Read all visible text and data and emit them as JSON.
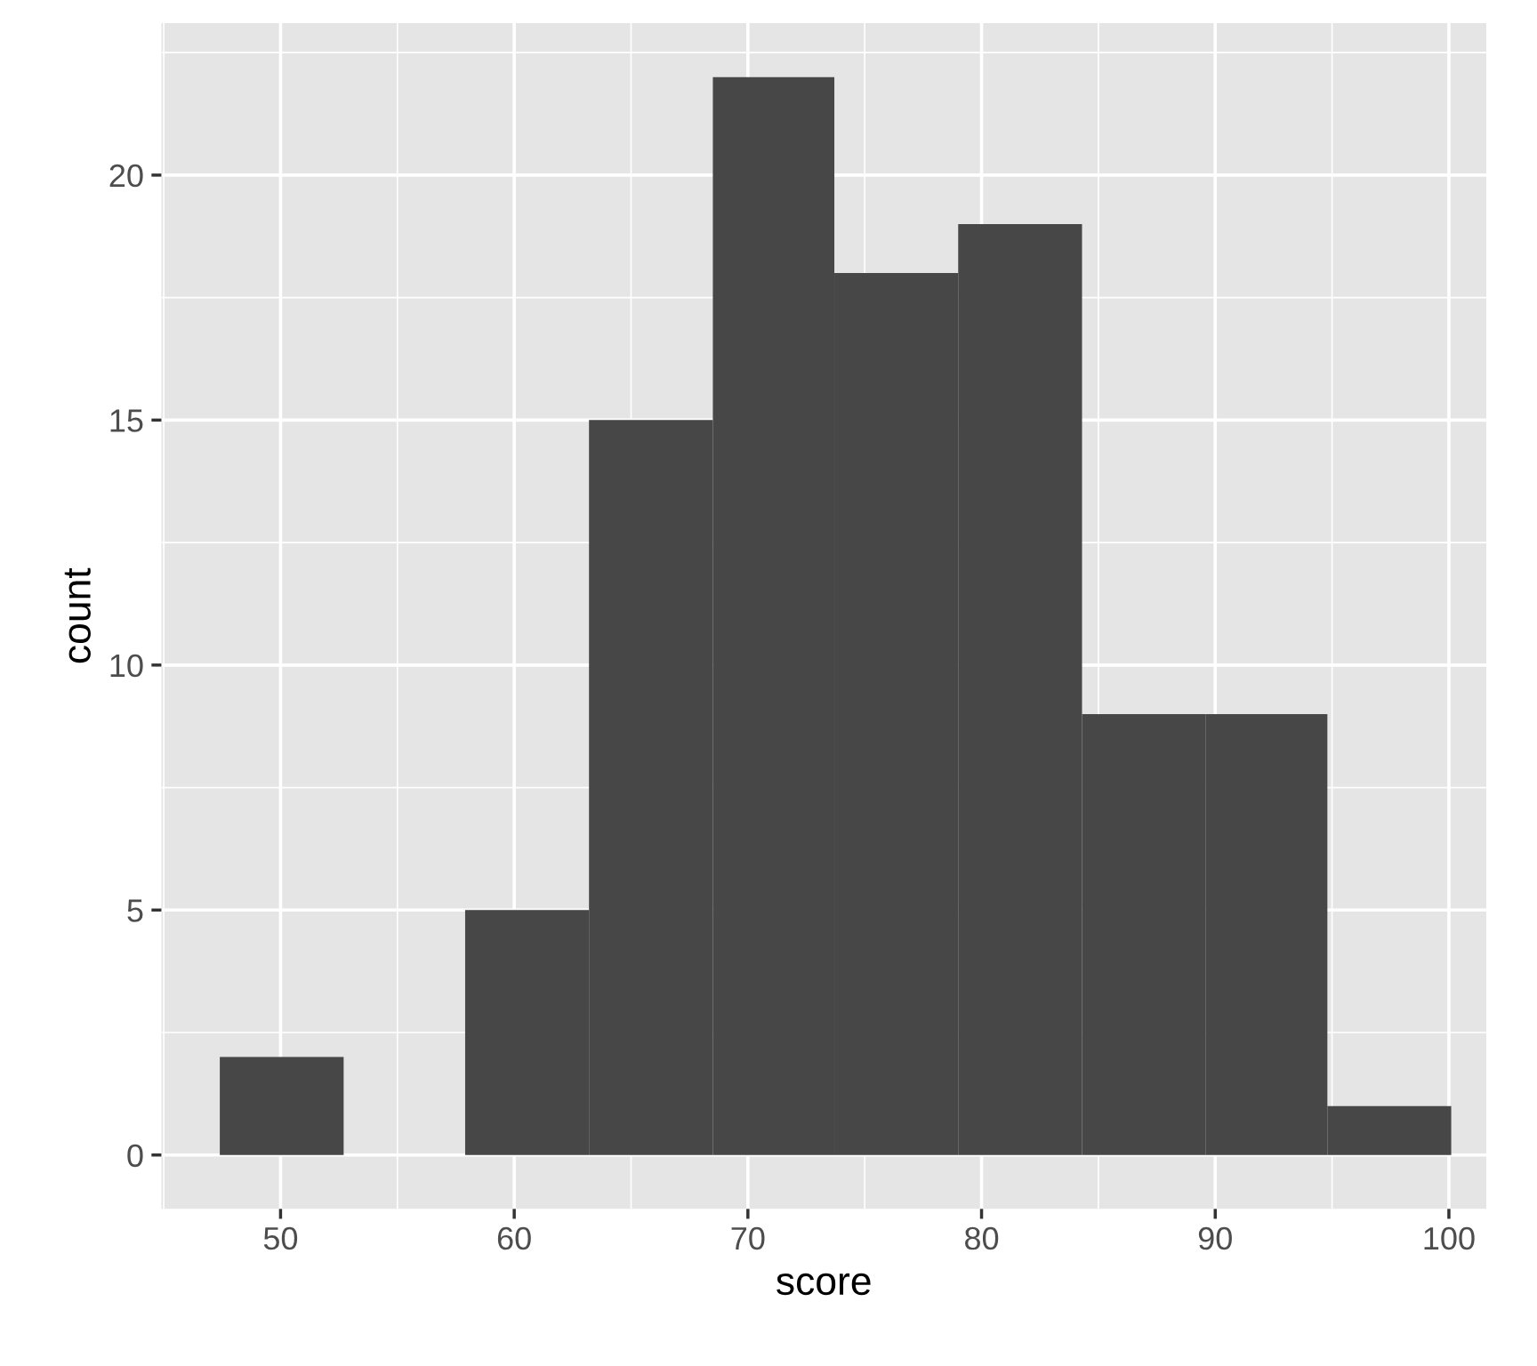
{
  "chart_data": {
    "type": "histogram",
    "xlabel": "score",
    "ylabel": "count",
    "bins": [
      47.4,
      52.7,
      57.9,
      63.2,
      68.5,
      73.7,
      79.0,
      84.3,
      89.6,
      94.8,
      100.1
    ],
    "values": [
      2,
      0,
      5,
      15,
      22,
      18,
      19,
      9,
      9,
      1
    ],
    "color": "#474747",
    "xlim": [
      44.9,
      101.6
    ],
    "xticks": [
      50,
      60,
      70,
      80,
      90,
      100
    ],
    "ylim": [
      -1.1,
      23.1
    ],
    "yticks": [
      0,
      5,
      10,
      15,
      20
    ],
    "grid": true
  }
}
